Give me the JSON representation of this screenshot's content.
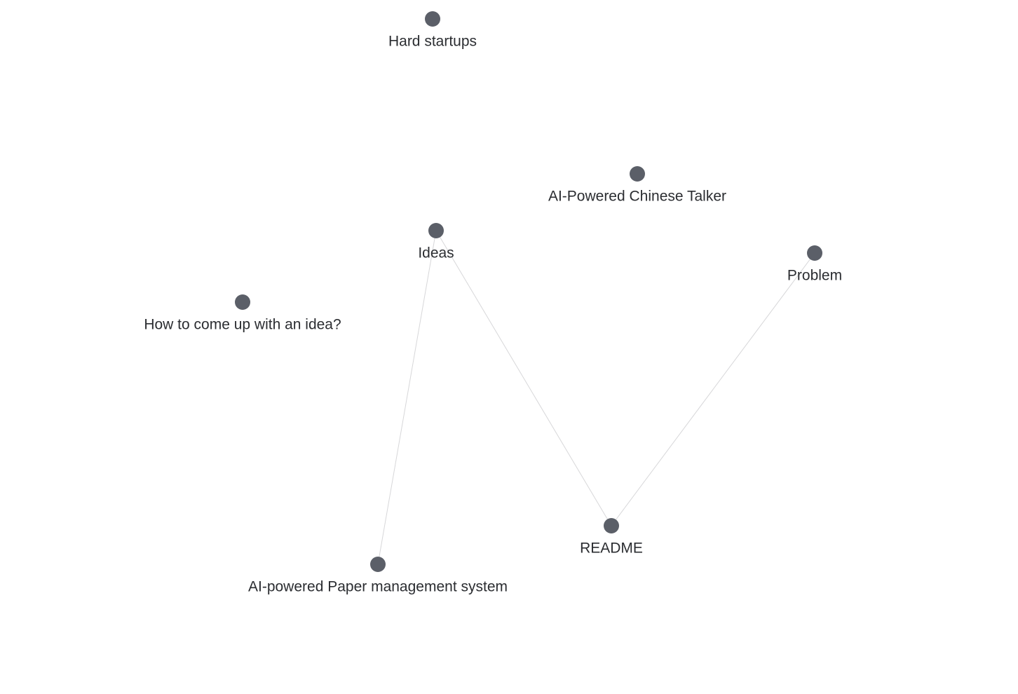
{
  "graph": {
    "node_color": "#5b5f68",
    "edge_color": "#d7d7d9",
    "label_color": "#2b2d31",
    "background": "#ffffff",
    "nodes": [
      {
        "id": "hard-startups",
        "label": "Hard startups"
      },
      {
        "id": "ai-powered-chinese-talker",
        "label": "AI-Powered Chinese Talker"
      },
      {
        "id": "ideas",
        "label": "Ideas"
      },
      {
        "id": "problem",
        "label": "Problem"
      },
      {
        "id": "how-to-come-up-with-an-idea",
        "label": "How to come up with an idea?"
      },
      {
        "id": "readme",
        "label": "README"
      },
      {
        "id": "ai-powered-paper-management-system",
        "label": "AI-powered Paper management system"
      }
    ],
    "edges": [
      {
        "source": "ideas",
        "target": "ai-powered-paper-management-system"
      },
      {
        "source": "ideas",
        "target": "readme"
      },
      {
        "source": "readme",
        "target": "problem"
      }
    ]
  }
}
